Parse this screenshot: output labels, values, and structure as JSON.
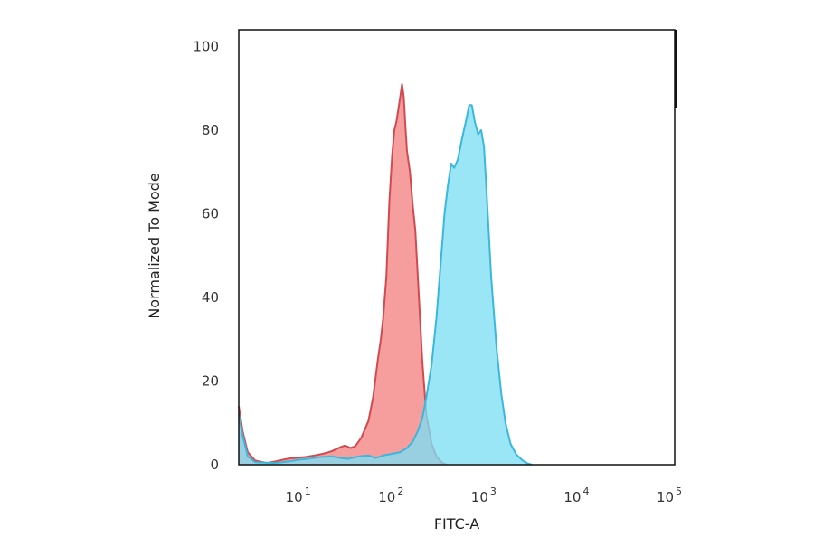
{
  "chart_data": {
    "type": "area",
    "xlabel": "FITC-A",
    "ylabel": "Normalized To Mode",
    "x_scale": "log",
    "xlim": [
      2,
      100000
    ],
    "ylim": [
      0,
      104
    ],
    "x_ticks": [
      {
        "value": 10,
        "base": "10",
        "exp": "1"
      },
      {
        "value": 100,
        "base": "10",
        "exp": "2"
      },
      {
        "value": 1000,
        "base": "10",
        "exp": "3"
      },
      {
        "value": 10000,
        "base": "10",
        "exp": "4"
      },
      {
        "value": 100000,
        "base": "10",
        "exp": "5"
      }
    ],
    "y_ticks": [
      0,
      20,
      40,
      60,
      80,
      100
    ],
    "grid": false,
    "legend": "none",
    "series": [
      {
        "color": "#f58c8c",
        "stroke": "#d24a50",
        "points": [
          [
            2,
            14
          ],
          [
            2.2,
            8
          ],
          [
            2.5,
            3
          ],
          [
            3,
            1
          ],
          [
            4,
            0.4
          ],
          [
            5,
            0.8
          ],
          [
            6,
            1.2
          ],
          [
            7,
            1.5
          ],
          [
            8,
            1.6
          ],
          [
            10,
            1.8
          ],
          [
            13,
            2.2
          ],
          [
            16,
            2.6
          ],
          [
            20,
            3.2
          ],
          [
            25,
            4.2
          ],
          [
            28,
            4.6
          ],
          [
            32,
            4.0
          ],
          [
            36,
            4.4
          ],
          [
            42,
            6.5
          ],
          [
            50,
            10.5
          ],
          [
            56,
            16
          ],
          [
            63,
            25
          ],
          [
            68,
            30
          ],
          [
            72,
            35
          ],
          [
            78,
            45
          ],
          [
            84,
            63
          ],
          [
            90,
            74
          ],
          [
            95,
            80
          ],
          [
            100,
            82
          ],
          [
            105,
            85
          ],
          [
            110,
            88
          ],
          [
            115,
            91
          ],
          [
            120,
            88
          ],
          [
            125,
            81
          ],
          [
            130,
            75
          ],
          [
            140,
            70
          ],
          [
            150,
            62
          ],
          [
            160,
            56
          ],
          [
            175,
            40
          ],
          [
            190,
            25
          ],
          [
            210,
            12
          ],
          [
            240,
            5
          ],
          [
            270,
            2
          ],
          [
            310,
            0.5
          ],
          [
            350,
            0
          ]
        ]
      },
      {
        "color": "#7ddff5",
        "stroke": "#3ab8dc",
        "points": [
          [
            2,
            12
          ],
          [
            2.2,
            7
          ],
          [
            2.5,
            2
          ],
          [
            3,
            0.6
          ],
          [
            5,
            0.4
          ],
          [
            7,
            0.8
          ],
          [
            9,
            1.2
          ],
          [
            12,
            1.5
          ],
          [
            15,
            1.8
          ],
          [
            20,
            2.0
          ],
          [
            25,
            1.6
          ],
          [
            30,
            1.4
          ],
          [
            40,
            2.0
          ],
          [
            50,
            2.2
          ],
          [
            60,
            1.6
          ],
          [
            75,
            2.3
          ],
          [
            90,
            2.6
          ],
          [
            110,
            3.0
          ],
          [
            130,
            4.0
          ],
          [
            150,
            5.5
          ],
          [
            170,
            8.0
          ],
          [
            190,
            11
          ],
          [
            210,
            16
          ],
          [
            240,
            24
          ],
          [
            270,
            35
          ],
          [
            300,
            48
          ],
          [
            330,
            60
          ],
          [
            360,
            67
          ],
          [
            390,
            72
          ],
          [
            420,
            71
          ],
          [
            460,
            73
          ],
          [
            510,
            78
          ],
          [
            560,
            82
          ],
          [
            610,
            86
          ],
          [
            650,
            86
          ],
          [
            700,
            82
          ],
          [
            760,
            79
          ],
          [
            820,
            80
          ],
          [
            880,
            76
          ],
          [
            950,
            63
          ],
          [
            1050,
            45
          ],
          [
            1200,
            28
          ],
          [
            1350,
            17
          ],
          [
            1500,
            10
          ],
          [
            1700,
            5
          ],
          [
            1950,
            2.5
          ],
          [
            2300,
            1
          ],
          [
            2600,
            0.3
          ],
          [
            2900,
            0
          ]
        ]
      }
    ]
  }
}
